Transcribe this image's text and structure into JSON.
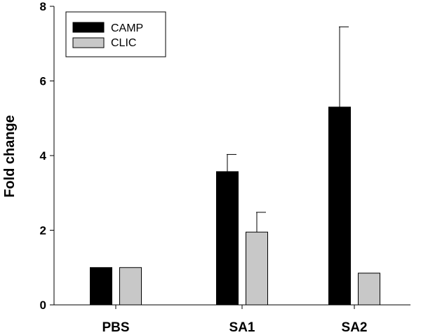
{
  "chart_data": {
    "type": "bar",
    "categories": [
      "PBS",
      "SA1",
      "SA2"
    ],
    "series": [
      {
        "name": "CAMP",
        "color": "#000000",
        "values": [
          1.0,
          3.57,
          5.3
        ],
        "error_upper": [
          null,
          4.03,
          7.45
        ]
      },
      {
        "name": "CLIC",
        "color": "#c8c8c8",
        "values": [
          1.0,
          1.95,
          0.85
        ],
        "error_upper": [
          null,
          2.48,
          null
        ]
      }
    ],
    "title": "",
    "xlabel": "",
    "ylabel": "Fold change",
    "ylim": [
      0,
      8
    ],
    "yticks": [
      0,
      2,
      4,
      6,
      8
    ],
    "grid": false,
    "legend_position": "top-left"
  }
}
